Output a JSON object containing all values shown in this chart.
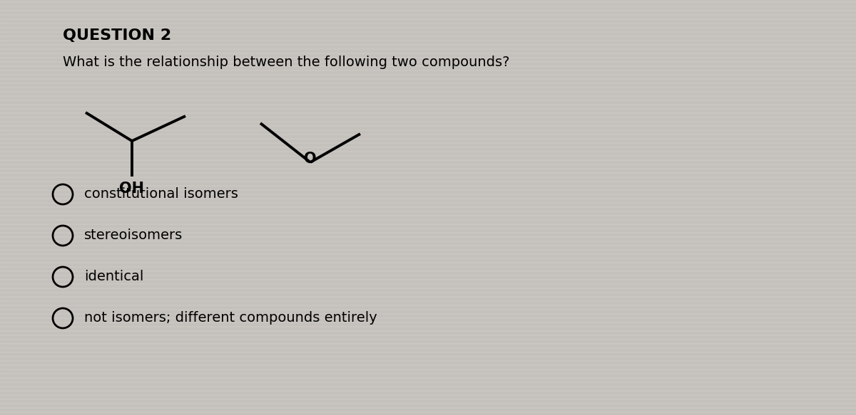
{
  "title": "QUESTION 2",
  "question": "What is the relationship between the following two compounds?",
  "options": [
    "constitutional isomers",
    "stereoisomers",
    "identical",
    "not isomers; different compounds entirely"
  ],
  "bg_light": "#d4d0cc",
  "bg_dark": "#b8b4b0",
  "text_color": "#000000",
  "title_fontsize": 16,
  "question_fontsize": 14,
  "option_fontsize": 14,
  "compound1_label": "OH",
  "compound2_label": "O",
  "stripe_color": "#c0bcb8",
  "stripe_color2": "#ccc8c4"
}
